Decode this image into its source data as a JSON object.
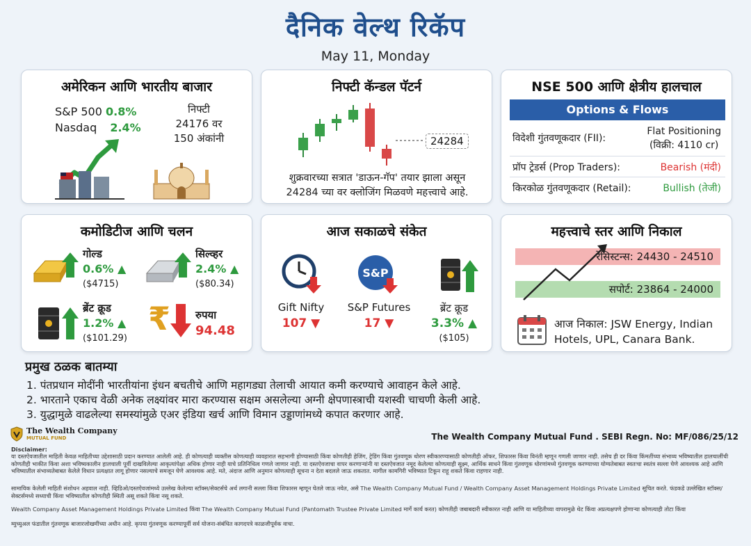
{
  "header": {
    "title": "दैनिक वेल्थ रिकॅप",
    "date": "May 11, Monday"
  },
  "markets": {
    "title": "अमेरिकन आणि भारतीय बाजार",
    "sp500_label": "S&P 500",
    "sp500_value": "0.8%",
    "nasdaq_label": "Nasdaq",
    "nasdaq_value": "2.4%",
    "nifty_line1": "निफ्टी",
    "nifty_line2": "24176 वर",
    "nifty_line3": "150 अंकांनी"
  },
  "candle": {
    "title": "निफ्टी कॅन्डल पॅटर्न",
    "level": "24284",
    "desc_line1": "शुक्रवारच्या सत्रात 'डाऊन-गॅप' तयार झाला असून",
    "desc_line2": "24284 च्या वर क्लोजिंग मिळवणे महत्त्वाचे आहे."
  },
  "nse": {
    "title": "NSE 500 आणि क्षेत्रीय हालचाल",
    "table_head": "Options & Flows",
    "rows": [
      {
        "label": "विदेशी गुंतवणूकदार (FII):",
        "value_line1": "Flat Positioning",
        "value_line2": "(विक्री: 4110 cr)"
      },
      {
        "label": "प्रॉप ट्रेडर्स (Prop Traders):",
        "value_line1": "Bearish (मंदी)"
      },
      {
        "label": "किरकोळ गुंतवणूकदार (Retail):",
        "value_line1": "Bullish (तेजी)"
      }
    ]
  },
  "commodities": {
    "title": "कमोडिटीज आणि चलन",
    "gold": {
      "name": "गोल्ड",
      "pct": "0.6%",
      "price": "($4715)"
    },
    "silver": {
      "name": "सिल्व्हर",
      "pct": "2.4%",
      "price": "($80.34)"
    },
    "brent": {
      "name": "ब्रेंट क्रूड",
      "pct": "1.2%",
      "price": "($101.29)"
    },
    "rupee": {
      "name": "रुपया",
      "value": "94.48",
      "symbol": "₹"
    }
  },
  "cues": {
    "title": "आज सकाळचे संकेत",
    "gift": {
      "name": "Gift Nifty",
      "value": "107"
    },
    "spf": {
      "name": "S&P Futures",
      "value": "17",
      "logo": "S&P"
    },
    "brent": {
      "name": "ब्रेंट क्रूड",
      "value": "3.3%",
      "price": "($105)"
    }
  },
  "levels": {
    "title": "महत्त्वाचे स्तर आणि निकाल",
    "resistance": "रेसिस्टन्स: 24430 - 24510",
    "support": "सपोर्ट: 23864 - 24000",
    "results_line1": "आज निकाल: JSW Energy, Indian",
    "results_line2": "Hotels, UPL, Canara Bank."
  },
  "news": {
    "title": "प्रमुख ठळक बातम्या",
    "items": [
      "1. पंतप्रधान मोदींनी भारतीयांना इंधन बचतीचे आणि महागड्या तेलाची आयात कमी करण्याचे आवाहन केले आहे.",
      "2. भारताने एकाच वेळी अनेक लक्ष्यांवर मारा करण्यास सक्षम असलेल्या अग्नी क्षेपणास्त्राची यशस्वी चाचणी केली आहे.",
      "3. युद्धामुळे वाढलेल्या समस्यांमुळे एअर इंडिया खर्च आणि विमान उड्डाणांमध्ये कपात करणार आहे."
    ]
  },
  "footer": {
    "logo_name": "The Wealth Company",
    "logo_sub": "MUTUAL FUND",
    "sebi": "The Wealth Company Mutual Fund . SEBI Regn. No: MF/086/25/12",
    "disclaimer_title": "Disclaimer:",
    "disc1": "या दस्तऐवजातील माहिती केवळ माहितीच्या उद्देशासाठी प्रदान करण्यात आलेली आहे. ही कोणत्याही व्यक्तीस कोणत्याही व्यवहारात सहभागी होण्यासाठी किंवा कोणतीही हेजिंग, ट्रेडिंग किंवा गुंतवणूक धोरण स्वीकारण्यासाठी कोणतीही ऑफर, शिफारस किंवा विनंती म्हणून गणली जाणार नाही. तसेच ही दर किंवा किंमतींच्या संभाव्य भविष्यातील हालचालींची कोणतीही भाकीत किंवा अशा भविष्यकालीन हालचाली पूर्वी दाखविलेल्या आकृत्यांपेक्षा अधिक होणार नाही याचे प्रतिनिधित्व गणले जाणार नाही. या दस्तऐवजाचा वापर करणाऱ्यांनी या दस्तऐवजात नमूद केलेल्या कोणत्याही सूक्ष्म, आर्थिक साधने किंवा गुंतवणूक धोरणांमध्ये गुंतवणूक करण्याच्या योग्यतेबाबत स्वतःचा स्वतंत्र सल्ला घेणे आवश्यक आहे आणि भविष्यातील संभाव्यतेबाबत केलेले विधान प्रत्यक्षात लागू होणार नसल्याचे समजून घेणे आवश्यक आहे. मते, अंदाज आणि अनुमान कोणत्याही सूचना न देता बदलले जाऊ शकतात. मागील कामगिरी भविष्यात टिकून राहू शकते किंवा राहणार नाही.",
    "disc2": "सामायिक केलेली माहिती संशोधन अहवाल नाही. व्हिडिओ/दस्तऐवजांमध्ये उल्लेख केलेल्या स्टॉक्स/सेक्टर्सचे अर्थ लगानी सल्ला किंवा शिफारस म्हणून घेतले जाऊ नयेत, असे The Wealth Company Mutual Fund / Wealth Company Asset Management Holdings Private Limited सूचित करते. फंडकडे उल्लेखित स्टॉक्स/सेक्टर्समध्ये सध्याची किंवा भविष्यातील कोणतीही स्थिती असू शकते किंवा नसू शकते.",
    "disc3": "Wealth Company Asset Management Holdings Private Limited किंवा The Wealth Company Mutual Fund (Pantomath Trustee Private Limited मार्गे कार्य करत) कोणतीही जबाबदारी स्वीकारत नाही आणि या माहितीच्या वापरामुळे थेट किंवा अप्रत्यक्षपणे होणाऱ्या कोणत्याही तोटा किंवा",
    "disc4": "म्युच्युअल फंडातील गुंतवणूक बाजारजोखमींच्या अधीन आहे. कृपया गुंतवणूक करण्यापूर्वी सर्व योजना-संबंधित कागदपत्रे काळजीपूर्वक वाचा."
  },
  "colors": {
    "title_blue": "#1f4e8c",
    "up_green": "#2e9a3e",
    "down_red": "#d33",
    "table_blue": "#2a5ea8"
  }
}
